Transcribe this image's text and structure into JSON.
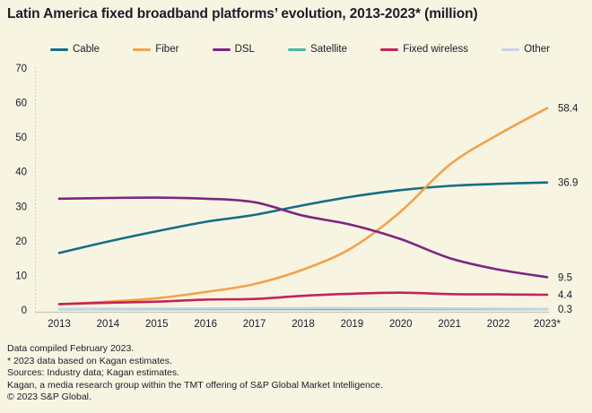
{
  "title": "Latin America fixed broadband platforms’ evolution, 2013-2023* (million)",
  "colors": {
    "background": "#f7f5e2",
    "text": "#1c1b29",
    "axis": "#c9c6b6"
  },
  "chart_data": {
    "type": "line",
    "x": [
      2013,
      2014,
      2015,
      2016,
      2017,
      2018,
      2019,
      2020,
      2021,
      2022,
      2023
    ],
    "x_tick_labels": [
      "2013",
      "2014",
      "2015",
      "2016",
      "2017",
      "2018",
      "2019",
      "2020",
      "2021",
      "2022",
      "2023*"
    ],
    "ylim": [
      0,
      70
    ],
    "yticks": [
      0,
      10,
      20,
      30,
      40,
      50,
      60,
      70
    ],
    "grid": false,
    "legend_position": "top",
    "series": [
      {
        "name": "Cable",
        "color": "#156e84",
        "end_label": "36.9",
        "values": [
          16.5,
          19.8,
          22.8,
          25.5,
          27.5,
          30.3,
          32.8,
          34.7,
          35.9,
          36.5,
          36.9
        ]
      },
      {
        "name": "Fiber",
        "color": "#f3a14b",
        "end_label": "58.4",
        "values": [
          1.6,
          2.4,
          3.4,
          5.2,
          7.5,
          11.7,
          18.0,
          28.5,
          42.0,
          50.8,
          58.4
        ]
      },
      {
        "name": "DSL",
        "color": "#7d2583",
        "end_label": "9.5",
        "values": [
          32.2,
          32.4,
          32.5,
          32.2,
          31.2,
          27.3,
          24.6,
          20.5,
          15.0,
          11.7,
          9.5
        ]
      },
      {
        "name": "Satellite",
        "color": "#4dbaa2",
        "end_label": null,
        "values": [
          0.25,
          0.25,
          0.25,
          0.25,
          0.25,
          0.25,
          0.25,
          0.25,
          0.25,
          0.25,
          0.25
        ]
      },
      {
        "name": "Fixed wireless",
        "color": "#c42459",
        "end_label": "4.4",
        "values": [
          1.7,
          2.1,
          2.4,
          3.0,
          3.2,
          4.1,
          4.7,
          5.0,
          4.6,
          4.5,
          4.4
        ]
      },
      {
        "name": "Other",
        "color": "#c7d2e8",
        "end_label": "0.3",
        "values": [
          0.3,
          0.35,
          0.4,
          0.45,
          0.5,
          0.55,
          0.55,
          0.5,
          0.45,
          0.4,
          0.3
        ]
      }
    ]
  },
  "footer": {
    "lines": [
      "Data compiled February 2023.",
      "* 2023 data based on Kagan estimates.",
      "Sources: Industry data; Kagan estimates.",
      "Kagan, a media research group within the TMT offering of S&P Global Market Intelligence.",
      "© 2023 S&P Global."
    ]
  }
}
